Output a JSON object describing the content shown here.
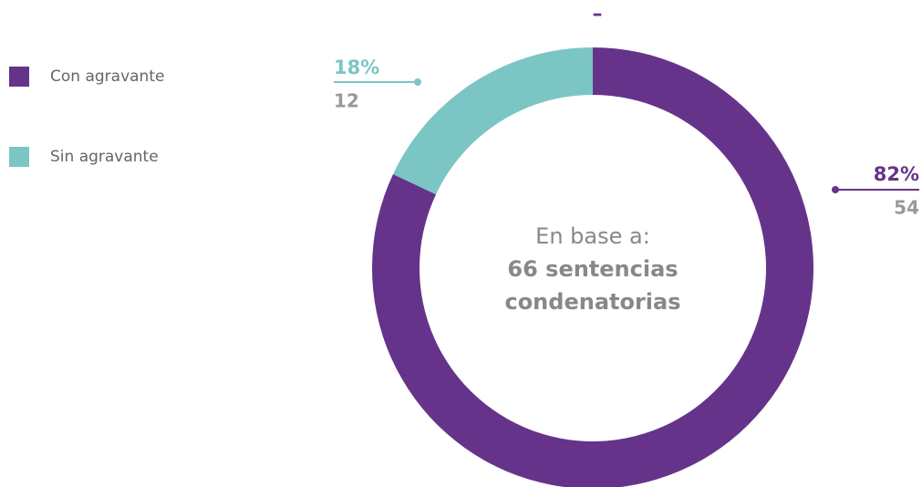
{
  "chart_data": {
    "type": "pie",
    "title": "–",
    "categories": [
      "Con agravante",
      "Sin agravante"
    ],
    "values": [
      82,
      18
    ],
    "value_labels": [
      "82%",
      "18%"
    ],
    "counts": [
      54,
      12
    ],
    "colors": [
      "#66338b",
      "#7cc5c5"
    ],
    "center_text": [
      "En base a:",
      "66 sentencias",
      "condenatorias"
    ]
  }
}
